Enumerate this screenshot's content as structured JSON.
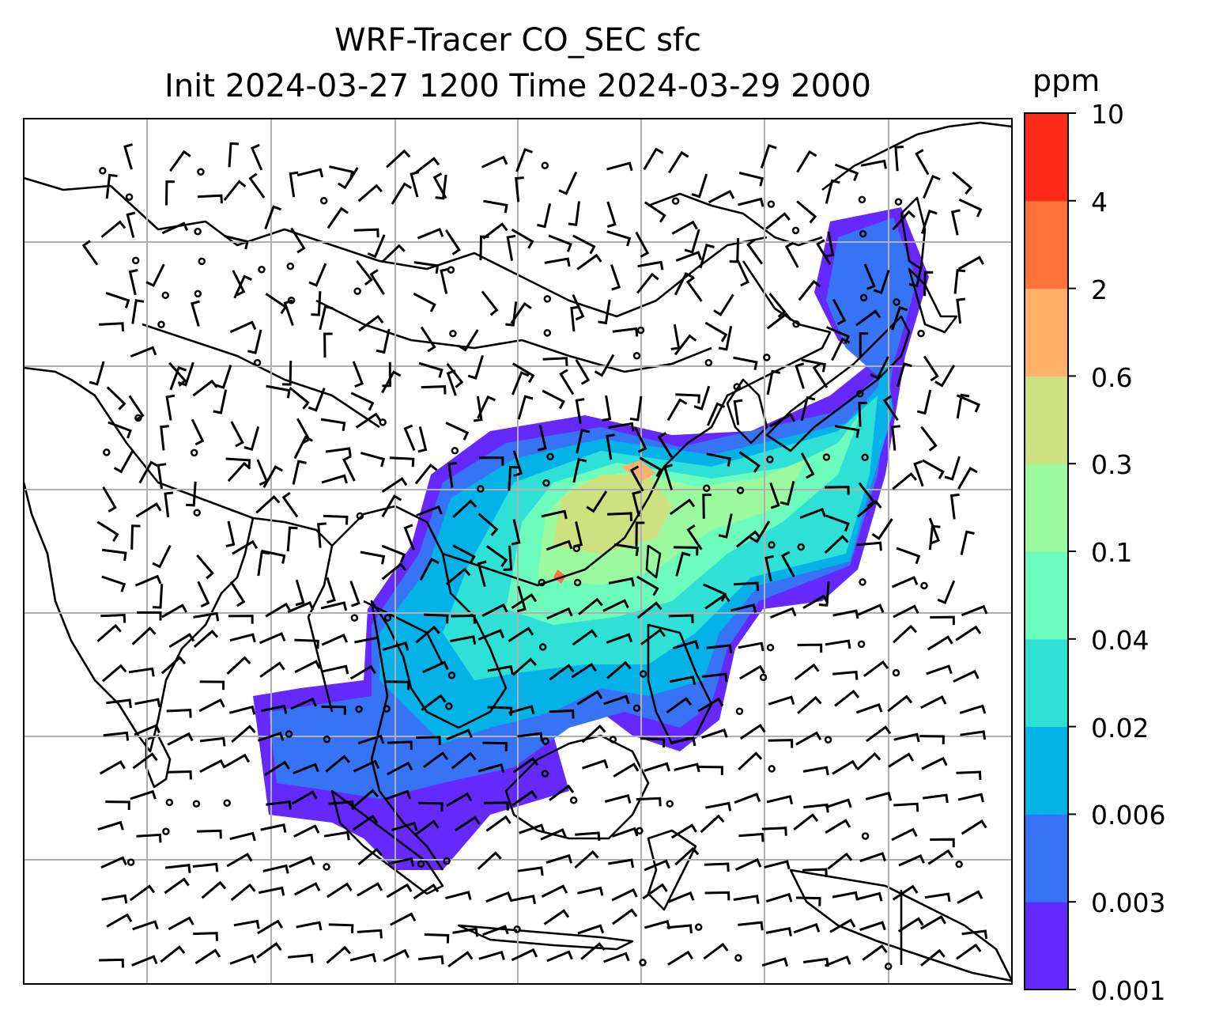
{
  "title": {
    "line1": "WRF-Tracer CO_SEC sfc",
    "line2": "Init 2024-03-27 1200 Time 2024-03-29 2000"
  },
  "colorbar": {
    "unit": "ppm",
    "levels": [
      "0.001",
      "0.003",
      "0.006",
      "0.02",
      "0.04",
      "0.1",
      "0.3",
      "0.6",
      "2",
      "4",
      "10"
    ],
    "colors": [
      "#6528fd",
      "#3774f5",
      "#04b2e8",
      "#2fe0d6",
      "#6cfcbd",
      "#9bfa9d",
      "#cee07f",
      "#ffb06a",
      "#ff7239",
      "#ff2a18"
    ]
  },
  "map": {
    "type": "filled contour tracer concentration with wind barbs over coastlines",
    "gridlines": true,
    "region": "South / Southeast / East Asia",
    "overlay": "wind barbs"
  }
}
